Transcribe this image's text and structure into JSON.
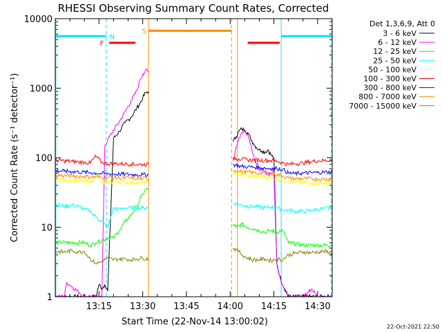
{
  "chart_data": {
    "type": "line",
    "title": "RHESSI Observing Summary Count Rates, Corrected",
    "xlabel": "Start Time (22-Nov-14 13:00:02)",
    "ylabel": "Corrected Count Rate (s⁻¹ detector⁻¹)",
    "yscale": "log",
    "ylim": [
      1,
      10000
    ],
    "xlim_minutes": [
      0,
      95
    ],
    "x_ticks": [
      {
        "label": "13:15",
        "min": 15
      },
      {
        "label": "13:30",
        "min": 30
      },
      {
        "label": "13:45",
        "min": 45
      },
      {
        "label": "14:00",
        "min": 60
      },
      {
        "label": "14:15",
        "min": 75
      },
      {
        "label": "14:30",
        "min": 90
      }
    ],
    "y_ticks": [
      {
        "label": "1",
        "value": 1
      },
      {
        "label": "10",
        "value": 10
      },
      {
        "label": "100",
        "value": 100
      },
      {
        "label": "1000",
        "value": 1000
      },
      {
        "label": "10000",
        "value": 10000
      }
    ],
    "legend_header": "Det 1,3,6,9, Att 0",
    "legend_position": "right",
    "series": [
      {
        "name": "3 - 6 keV",
        "color": "#000000",
        "x": [
          0,
          10,
          14,
          15,
          16,
          17,
          18,
          20,
          22,
          24,
          26,
          28,
          29,
          30,
          31,
          32,
          61,
          62,
          63,
          64,
          65,
          66,
          67,
          68,
          69,
          70,
          71,
          72,
          73,
          74,
          75,
          76,
          77,
          78,
          80,
          85,
          90,
          95
        ],
        "y": [
          1,
          1,
          1,
          1.5,
          1.3,
          1.5,
          1.2,
          190,
          240,
          320,
          380,
          520,
          600,
          720,
          860,
          900,
          170,
          200,
          240,
          260,
          250,
          230,
          190,
          160,
          140,
          130,
          125,
          120,
          130,
          110,
          100,
          3,
          2,
          1.5,
          1,
          1,
          1,
          1
        ]
      },
      {
        "name": "6 - 12 keV",
        "color": "#ff00ff",
        "x": [
          0,
          3,
          4,
          10,
          16,
          17,
          18,
          20,
          22,
          24,
          26,
          28,
          29,
          30,
          31,
          32,
          61,
          62,
          63,
          64,
          65,
          66,
          67,
          68,
          69,
          70,
          71,
          72,
          73,
          74,
          75,
          76,
          77,
          78,
          80,
          85,
          88,
          90,
          95
        ],
        "y": [
          1,
          1,
          1.6,
          1,
          1,
          150,
          180,
          250,
          330,
          460,
          650,
          920,
          1300,
          1600,
          1800,
          1700,
          90,
          140,
          190,
          230,
          250,
          220,
          160,
          110,
          80,
          70,
          65,
          62,
          60,
          60,
          62,
          3,
          2,
          1.5,
          1,
          1,
          1.3,
          1,
          1
        ]
      },
      {
        "name": "12 - 25 keV",
        "color": "#00ff00",
        "x": [
          0,
          5,
          10,
          12,
          14,
          16,
          18,
          20,
          22,
          24,
          26,
          28,
          29,
          30,
          31,
          32,
          61,
          62,
          63,
          64,
          66,
          68,
          70,
          72,
          74,
          76,
          78,
          80,
          85,
          90,
          95
        ],
        "y": [
          6,
          6,
          6,
          5.5,
          6,
          6.5,
          7,
          7,
          9,
          12,
          15,
          20,
          25,
          30,
          35,
          35,
          11,
          10,
          10.5,
          11,
          10,
          9.5,
          9,
          8.5,
          9,
          8.5,
          9,
          6,
          5.5,
          5.5,
          5.5
        ]
      },
      {
        "name": "25 - 50 keV",
        "color": "#00ffff",
        "x": [
          0,
          3,
          6,
          8,
          10,
          12,
          14,
          16,
          18,
          20,
          22,
          24,
          26,
          28,
          30,
          32,
          61,
          62,
          63,
          64,
          66,
          68,
          70,
          72,
          74,
          76,
          78,
          80,
          82,
          85,
          88,
          90,
          92,
          95
        ],
        "y": [
          21,
          20,
          21,
          20,
          18,
          17,
          14,
          12,
          10,
          19,
          18,
          19,
          19,
          19,
          19,
          19,
          22,
          22,
          21,
          21,
          20,
          20,
          19.5,
          19,
          19.5,
          19,
          18,
          17.5,
          17,
          17,
          17.5,
          18,
          18.5,
          19
        ]
      },
      {
        "name": "50 - 100 keV",
        "color": "#ffff00",
        "x": [
          0,
          3,
          6,
          8,
          10,
          12,
          13,
          14,
          16,
          18,
          20,
          22,
          24,
          26,
          28,
          30,
          32,
          61,
          62,
          63,
          64,
          66,
          68,
          70,
          72,
          74,
          76,
          78,
          80,
          82,
          85,
          88,
          90,
          92,
          95
        ],
        "y": [
          50,
          48,
          47,
          47,
          46,
          45,
          48,
          60,
          42,
          45,
          45,
          45,
          44,
          44,
          44,
          44,
          44,
          60,
          58,
          57,
          56,
          55,
          54,
          53,
          52,
          51,
          50,
          48,
          46,
          45,
          44,
          43,
          43,
          43,
          43
        ]
      },
      {
        "name": "100 - 300 keV",
        "color": "#ff0000",
        "x": [
          0,
          3,
          6,
          8,
          10,
          12,
          13,
          14,
          16,
          18,
          20,
          22,
          24,
          26,
          28,
          30,
          32,
          61,
          62,
          63,
          64,
          66,
          68,
          70,
          72,
          74,
          76,
          78,
          80,
          82,
          85,
          88,
          90,
          92,
          95
        ],
        "y": [
          92,
          90,
          88,
          87,
          86,
          84,
          95,
          105,
          85,
          82,
          82,
          82,
          81,
          81,
          80,
          80,
          80,
          100,
          98,
          96,
          95,
          93,
          92,
          92,
          92,
          91,
          90,
          84,
          80,
          82,
          84,
          88,
          90,
          91,
          93
        ]
      },
      {
        "name": "300 - 800 keV",
        "color": "#0000ff",
        "x": [
          0,
          3,
          6,
          8,
          10,
          12,
          14,
          16,
          18,
          20,
          22,
          24,
          26,
          28,
          30,
          32,
          61,
          62,
          63,
          64,
          66,
          68,
          70,
          72,
          74,
          76,
          78,
          80,
          82,
          85,
          88,
          90,
          92,
          95
        ],
        "y": [
          65,
          64,
          63,
          62,
          62,
          61,
          60,
          59,
          59,
          58,
          58,
          58,
          57,
          57,
          57,
          57,
          80,
          78,
          76,
          75,
          74,
          73,
          72,
          71,
          70,
          70,
          68,
          60,
          59,
          60,
          61,
          61,
          62,
          62
        ]
      },
      {
        "name": "800 - 7000 keV",
        "color": "#ff8c00",
        "x": [
          0,
          3,
          6,
          8,
          10,
          12,
          14,
          16,
          18,
          20,
          22,
          24,
          26,
          28,
          30,
          32,
          61,
          62,
          63,
          64,
          66,
          68,
          70,
          72,
          74,
          76,
          78,
          80,
          82,
          85,
          88,
          90,
          92,
          95
        ],
        "y": [
          56,
          55,
          55,
          54,
          54,
          53,
          53,
          52,
          52,
          52,
          51,
          51,
          51,
          50,
          50,
          50,
          66,
          65,
          64,
          63,
          62,
          61,
          60,
          59,
          58,
          57,
          55,
          51,
          50,
          50,
          50,
          49,
          49,
          49
        ]
      },
      {
        "name": "7000 - 15000 keV",
        "color": "#808000",
        "x": [
          0,
          3,
          6,
          8,
          10,
          12,
          14,
          16,
          18,
          20,
          22,
          24,
          26,
          28,
          30,
          32,
          61,
          62,
          63,
          64,
          66,
          68,
          70,
          72,
          74,
          76,
          78,
          80,
          82,
          85,
          88,
          90,
          92,
          95
        ],
        "y": [
          4.5,
          4.4,
          4.6,
          4.4,
          4.5,
          3.5,
          3,
          3.2,
          3.6,
          3.4,
          3.5,
          3.5,
          3.4,
          3.5,
          3.6,
          3.5,
          5,
          4.8,
          4.5,
          4,
          3.6,
          3.4,
          3.4,
          3.5,
          3.3,
          3.5,
          3.4,
          4,
          4.2,
          4.4,
          4.3,
          4.4,
          4.5,
          4.3
        ]
      }
    ],
    "bars": [
      {
        "label": "N",
        "color": "#00e5ff",
        "y": 5600,
        "segments": [
          [
            0,
            17.5
          ],
          [
            77.5,
            95
          ]
        ],
        "label_min": 19.5
      },
      {
        "label": "F",
        "color": "#ff0000",
        "y": 4500,
        "segments": [
          [
            18.5,
            27.5
          ],
          [
            66,
            77
          ]
        ],
        "label_min": 16
      },
      {
        "label": "S",
        "color": "#ff8c00",
        "y": 6700,
        "segments": [
          [
            32,
            60.5
          ]
        ],
        "label_min": 30.5
      }
    ],
    "vlines": [
      {
        "min": 0.2,
        "color": "#00e5ff",
        "style": "solid"
      },
      {
        "min": 17.5,
        "color": "#00e5ff",
        "style": "dashed"
      },
      {
        "min": 32,
        "color": "#ff8c00",
        "style": "solid"
      },
      {
        "min": 60.5,
        "color": "#ff8c00",
        "style": "dashed"
      },
      {
        "min": 62.5,
        "color": "#ff8c00",
        "style": "solid"
      },
      {
        "min": 77.5,
        "color": "#00e5ff",
        "style": "solid"
      },
      {
        "min": 94.7,
        "color": "#00e5ff",
        "style": "dashed"
      }
    ]
  },
  "footer_timestamp": "22-Oct-2021 22:50"
}
